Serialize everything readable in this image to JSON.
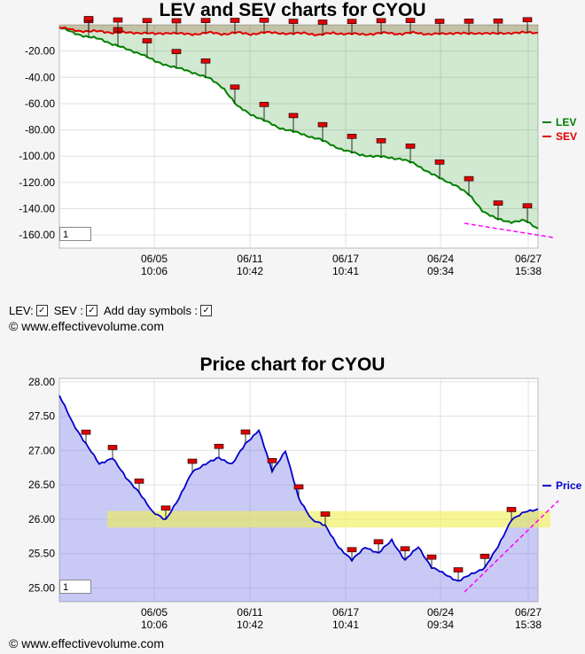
{
  "lev_chart": {
    "title": "LEV and SEV charts for CYOU",
    "zoom_value": "1",
    "legend": [
      {
        "label": "LEV",
        "color": "#008000"
      },
      {
        "label": "SEV",
        "color": "#e00000"
      }
    ]
  },
  "price_chart": {
    "title": "Price chart for CYOU",
    "zoom_value": "1",
    "legend": [
      {
        "label": "Price",
        "color": "#0000cc"
      }
    ]
  },
  "options": {
    "lev_label": "LEV:",
    "sev_label": "SEV :",
    "day_symbols_label": "Add day symbols :",
    "check_glyph": "✓"
  },
  "copyright": "© www.effectivevolume.com",
  "chart_data": [
    {
      "type": "line",
      "title": "LEV and SEV charts for CYOU",
      "y_ticks": [
        "-20.00",
        "-40.00",
        "-60.00",
        "-80.00",
        "-100.00",
        "-120.00",
        "-140.00",
        "-160.00"
      ],
      "ylim": [
        -170,
        0
      ],
      "x_ticks": [
        {
          "date": "06/05",
          "time": "10:06"
        },
        {
          "date": "06/11",
          "time": "10:42"
        },
        {
          "date": "06/17",
          "time": "10:41"
        },
        {
          "date": "06/24",
          "time": "09:34"
        },
        {
          "date": "06/27",
          "time": "15:38"
        }
      ],
      "series": [
        {
          "name": "LEV",
          "color": "#008000",
          "values": [
            -2,
            -6,
            -9,
            -11,
            -15,
            -19,
            -22,
            -28,
            -31,
            -34,
            -37,
            -41,
            -48,
            -62,
            -68,
            -73,
            -78,
            -81,
            -84,
            -87,
            -92,
            -96,
            -99,
            -100,
            -101,
            -102,
            -106,
            -112,
            -118,
            -122,
            -130,
            -142,
            -148,
            -150,
            -149,
            -155
          ]
        },
        {
          "name": "SEV",
          "color": "#e00000",
          "values": [
            -2,
            -4,
            -5,
            -5,
            -6,
            -6,
            -6,
            -7,
            -6,
            -7,
            -7,
            -6,
            -7,
            -6,
            -7,
            -6,
            -6,
            -7,
            -6,
            -8,
            -6,
            -7,
            -7,
            -7,
            -6,
            -7,
            -6,
            -7,
            -7,
            -6,
            -7,
            -6,
            -7,
            -6,
            -6,
            -6
          ]
        }
      ]
    },
    {
      "type": "line",
      "title": "Price chart for CYOU",
      "y_ticks": [
        "28.00",
        "27.50",
        "27.00",
        "26.50",
        "26.00",
        "25.50",
        "25.00"
      ],
      "ylim": [
        24.8,
        28.05
      ],
      "x_ticks": [
        {
          "date": "06/05",
          "time": "10:06"
        },
        {
          "date": "06/11",
          "time": "10:42"
        },
        {
          "date": "06/17",
          "time": "10:41"
        },
        {
          "date": "06/24",
          "time": "09:34"
        },
        {
          "date": "06/27",
          "time": "15:38"
        }
      ],
      "resistance_band": [
        25.88,
        26.12
      ],
      "series": [
        {
          "name": "Price",
          "color": "#0000cc",
          "values": [
            27.8,
            27.4,
            27.1,
            26.8,
            26.9,
            26.6,
            26.4,
            26.1,
            26.0,
            26.3,
            26.7,
            26.8,
            26.9,
            26.8,
            27.1,
            27.3,
            26.7,
            27.0,
            26.3,
            26.0,
            25.9,
            25.6,
            25.4,
            25.6,
            25.5,
            25.7,
            25.4,
            25.6,
            25.3,
            25.2,
            25.1,
            25.2,
            25.3,
            25.6,
            26.0,
            26.1,
            26.15
          ]
        }
      ]
    }
  ]
}
